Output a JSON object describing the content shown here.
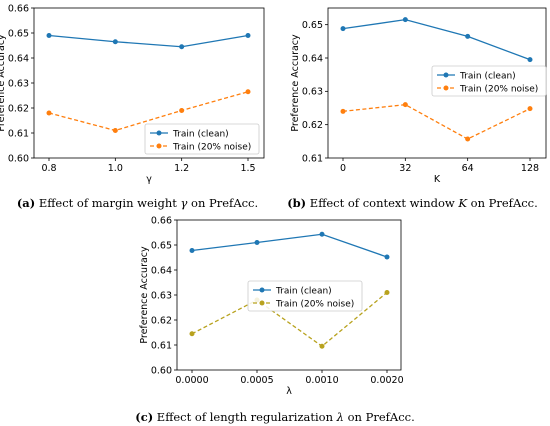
{
  "chart_data": [
    {
      "type": "line",
      "ylabel": "Preference Accuracy",
      "xlabel": "γ",
      "categories": [
        "0.8",
        "1.0",
        "1.2",
        "1.5"
      ],
      "ylim": [
        0.6,
        0.66
      ],
      "yticks": [
        "0.60",
        "0.61",
        "0.62",
        "0.63",
        "0.64",
        "0.65",
        "0.66"
      ],
      "grid": false,
      "legend_position": "center-right",
      "series": [
        {
          "name": "Train (clean)",
          "color": "#1f77b4",
          "dash": "solid",
          "values": [
            0.649,
            0.6465,
            0.6445,
            0.649
          ]
        },
        {
          "name": "Train (20% noise)",
          "color": "#ff7f0e",
          "dash": "dashed",
          "values": [
            0.618,
            0.611,
            0.619,
            0.6265
          ]
        }
      ],
      "caption": {
        "label": "(a)",
        "text_pre": " Effect of margin weight ",
        "symbol": "γ",
        "text_post": " on PrefAcc."
      }
    },
    {
      "type": "line",
      "ylabel": "Preference Accuracy",
      "xlabel": "K",
      "categories": [
        "0",
        "32",
        "64",
        "128"
      ],
      "ylim": [
        0.61,
        0.655
      ],
      "yticks": [
        "0.61",
        "0.62",
        "0.63",
        "0.64",
        "0.65"
      ],
      "grid": false,
      "legend_position": "center-right",
      "series": [
        {
          "name": "Train (clean)",
          "color": "#1f77b4",
          "dash": "solid",
          "values": [
            0.6488,
            0.6515,
            0.6465,
            0.6395
          ]
        },
        {
          "name": "Train (20% noise)",
          "color": "#ff7f0e",
          "dash": "dashed",
          "values": [
            0.624,
            0.626,
            0.6157,
            0.6248
          ]
        }
      ],
      "caption": {
        "label": "(b)",
        "text_pre": " Effect of context window ",
        "symbol": "K",
        "text_post": " on PrefAcc."
      }
    },
    {
      "type": "line",
      "ylabel": "Preference Accuracy",
      "xlabel": "λ",
      "categories": [
        "0.0000",
        "0.0005",
        "0.0010",
        "0.0020"
      ],
      "ylim": [
        0.6,
        0.66
      ],
      "yticks": [
        "0.60",
        "0.61",
        "0.62",
        "0.63",
        "0.64",
        "0.65",
        "0.66"
      ],
      "grid": false,
      "legend_position": "center-left",
      "series": [
        {
          "name": "Train (clean)",
          "color": "#1f77b4",
          "dash": "solid",
          "values": [
            0.6478,
            0.651,
            0.6543,
            0.6452
          ]
        },
        {
          "name": "Train (20% noise)",
          "color": "#b8a21e",
          "dash": "dashed",
          "values": [
            0.6145,
            0.628,
            0.6095,
            0.631
          ]
        }
      ],
      "caption": {
        "label": "(c)",
        "text_pre": " Effect of length regularization ",
        "symbol": "λ",
        "text_post": " on PrefAcc."
      }
    }
  ]
}
